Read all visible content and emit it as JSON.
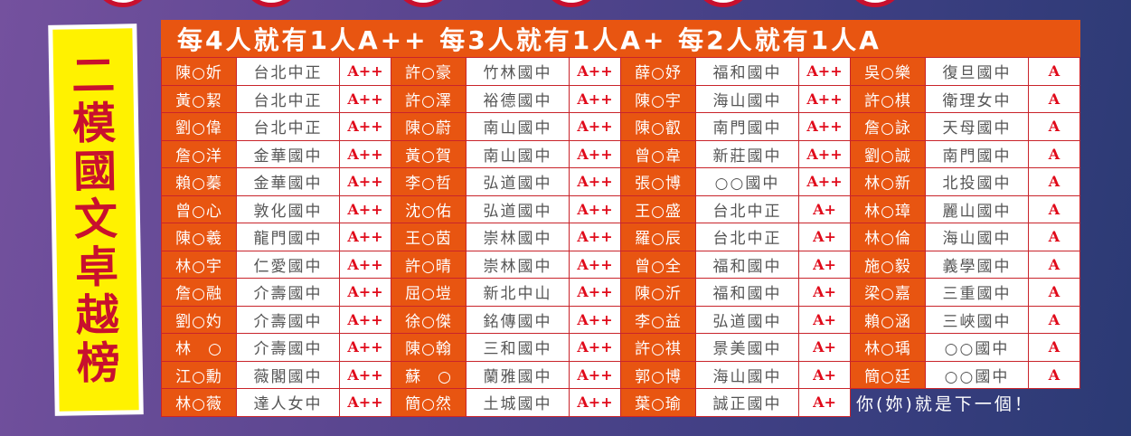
{
  "banner_title": "二模國文卓越榜",
  "header": "每4人就有1人A++ 每3人就有1人A+ 每2人就有1人A",
  "footer": "你(妳)就是下一個！",
  "colors": {
    "orange": "#e85511",
    "red": "#e00a1a",
    "yellow": "#fff200"
  },
  "groups": [
    [
      [
        "陳○妡",
        "台北中正",
        "A++"
      ],
      [
        "黃○絜",
        "台北中正",
        "A++"
      ],
      [
        "劉○偉",
        "台北中正",
        "A++"
      ],
      [
        "詹○洋",
        "金華國中",
        "A++"
      ],
      [
        "賴○蓁",
        "金華國中",
        "A++"
      ],
      [
        "曾○心",
        "敦化國中",
        "A++"
      ],
      [
        "陳○羲",
        "龍門國中",
        "A++"
      ],
      [
        "林○宇",
        "仁愛國中",
        "A++"
      ],
      [
        "詹○融",
        "介壽國中",
        "A++"
      ],
      [
        "劉○妁",
        "介壽國中",
        "A++"
      ],
      [
        "林　○",
        "介壽國中",
        "A++"
      ],
      [
        "江○勳",
        "薇閣國中",
        "A++"
      ],
      [
        "林○薇",
        "達人女中",
        "A++"
      ]
    ],
    [
      [
        "許○豪",
        "竹林國中",
        "A++"
      ],
      [
        "許○澤",
        "裕德國中",
        "A++"
      ],
      [
        "陳○蔚",
        "南山國中",
        "A++"
      ],
      [
        "黃○賀",
        "南山國中",
        "A++"
      ],
      [
        "李○哲",
        "弘道國中",
        "A++"
      ],
      [
        "沈○佑",
        "弘道國中",
        "A++"
      ],
      [
        "王○茵",
        "崇林國中",
        "A++"
      ],
      [
        "許○晴",
        "崇林國中",
        "A++"
      ],
      [
        "屈○塏",
        "新北中山",
        "A++"
      ],
      [
        "徐○傑",
        "銘傳國中",
        "A++"
      ],
      [
        "陳○翰",
        "三和國中",
        "A++"
      ],
      [
        "蘇　○",
        "蘭雅國中",
        "A++"
      ],
      [
        "簡○然",
        "土城國中",
        "A++"
      ]
    ],
    [
      [
        "薛○妤",
        "福和國中",
        "A++"
      ],
      [
        "陳○宇",
        "海山國中",
        "A++"
      ],
      [
        "陳○叡",
        "南門國中",
        "A++"
      ],
      [
        "曾○韋",
        "新莊國中",
        "A++"
      ],
      [
        "張○博",
        "○○國中",
        "A++"
      ],
      [
        "王○盛",
        "台北中正",
        "A+"
      ],
      [
        "羅○辰",
        "台北中正",
        "A+"
      ],
      [
        "曾○全",
        "福和國中",
        "A+"
      ],
      [
        "陳○沂",
        "福和國中",
        "A+"
      ],
      [
        "李○益",
        "弘道國中",
        "A+"
      ],
      [
        "許○祺",
        "景美國中",
        "A+"
      ],
      [
        "郭○博",
        "海山國中",
        "A+"
      ],
      [
        "葉○瑜",
        "誠正國中",
        "A+"
      ]
    ],
    [
      [
        "吳○樂",
        "復旦國中",
        "A"
      ],
      [
        "許○棋",
        "衛理女中",
        "A"
      ],
      [
        "詹○詠",
        "天母國中",
        "A"
      ],
      [
        "劉○誠",
        "南門國中",
        "A"
      ],
      [
        "林○新",
        "北投國中",
        "A"
      ],
      [
        "林○璋",
        "麗山國中",
        "A"
      ],
      [
        "林○倫",
        "海山國中",
        "A"
      ],
      [
        "施○毅",
        "義學國中",
        "A"
      ],
      [
        "梁○嘉",
        "三重國中",
        "A"
      ],
      [
        "賴○涵",
        "三峽國中",
        "A"
      ],
      [
        "林○瑀",
        "○○國中",
        "A"
      ],
      [
        "簡○廷",
        "○○國中",
        "A"
      ]
    ]
  ]
}
